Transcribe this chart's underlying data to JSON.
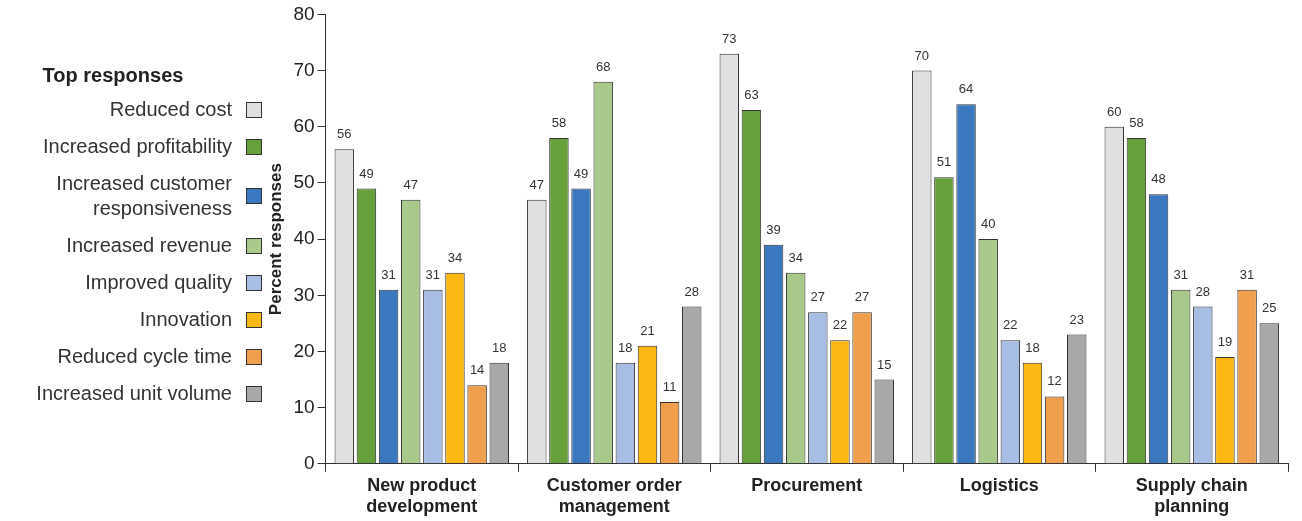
{
  "chart_data": {
    "type": "bar",
    "ylabel": "Percent responses",
    "legend_title": "Top responses",
    "legend": "left",
    "data_labels": true,
    "grid": false,
    "categories": [
      "New product development",
      "Customer order management",
      "Procurement",
      "Logistics",
      "Supply chain planning"
    ],
    "ylim": [
      0,
      80
    ],
    "yticks": [
      0,
      10,
      20,
      30,
      40,
      50,
      60,
      70,
      80
    ],
    "series": [
      {
        "name": "Reduced cost",
        "color": "#e0e0e0",
        "values": [
          56,
          47,
          73,
          70,
          60
        ]
      },
      {
        "name": "Increased profitability",
        "color": "#66a03a",
        "values": [
          49,
          58,
          63,
          51,
          58
        ]
      },
      {
        "name": "Increased customer responsiveness",
        "color": "#3a78c0",
        "values": [
          31,
          49,
          39,
          64,
          48
        ]
      },
      {
        "name": "Increased revenue",
        "color": "#a8c98a",
        "values": [
          47,
          68,
          34,
          40,
          31
        ]
      },
      {
        "name": "Improved quality",
        "color": "#a8bde3",
        "values": [
          31,
          18,
          27,
          22,
          28
        ]
      },
      {
        "name": "Innovation",
        "color": "#fbb813",
        "values": [
          34,
          21,
          22,
          18,
          19
        ]
      },
      {
        "name": "Reduced cycle time",
        "color": "#f0a04c",
        "values": [
          14,
          11,
          27,
          12,
          31
        ]
      },
      {
        "name": "Increased unit volume",
        "color": "#a8a8a8",
        "values": [
          18,
          28,
          15,
          23,
          25
        ]
      }
    ]
  }
}
